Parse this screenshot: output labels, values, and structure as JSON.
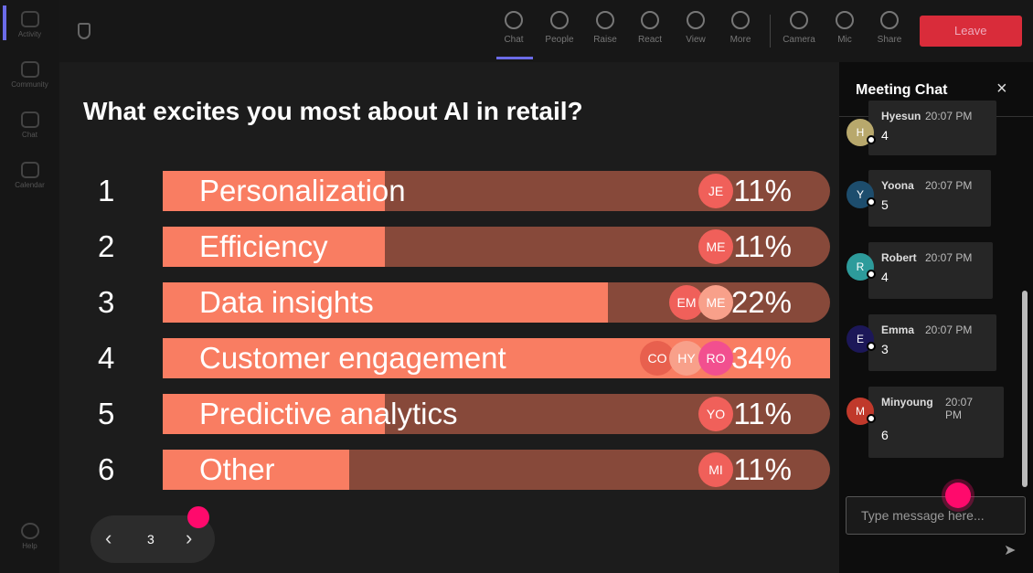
{
  "sidebar": {
    "items": [
      "Activity",
      "Community",
      "Chat",
      "Calendar"
    ],
    "help": "Help"
  },
  "toolbar": {
    "items": [
      "Chat",
      "People",
      "Raise",
      "React",
      "View",
      "More",
      "Camera",
      "Mic",
      "Share"
    ],
    "leave": "Leave"
  },
  "poll": {
    "question": "What excites you most about AI in retail?",
    "options": [
      {
        "number": "1",
        "label": "Personalization",
        "voters": [
          "JE"
        ],
        "percent": "11%"
      },
      {
        "number": "2",
        "label": "Efficiency",
        "voters": [
          "ME"
        ],
        "percent": "11%"
      },
      {
        "number": "3",
        "label": "Data insights",
        "voters": [
          "EM",
          "ME"
        ],
        "percent": "22%"
      },
      {
        "number": "4",
        "label": "Customer engagement",
        "voters": [
          "CO",
          "HY",
          "RO"
        ],
        "percent": "34%"
      },
      {
        "number": "5",
        "label": "Predictive analytics",
        "voters": [
          "YO"
        ],
        "percent": "11%"
      },
      {
        "number": "6",
        "label": "Other",
        "voters": [
          "MI"
        ],
        "percent": "11%"
      }
    ],
    "page": "3"
  },
  "chat": {
    "title": "Meeting Chat",
    "messages": [
      {
        "initial": "H",
        "name": "Hyesun",
        "time": "20:07 PM",
        "text": "4"
      },
      {
        "initial": "Y",
        "name": "Yoona",
        "time": "20:07 PM",
        "text": "5"
      },
      {
        "initial": "R",
        "name": "Robert",
        "time": "20:07 PM",
        "text": "4"
      },
      {
        "initial": "E",
        "name": "Emma",
        "time": "20:07 PM",
        "text": "3"
      },
      {
        "initial": "M",
        "name": "Minyoung",
        "time": "20:07 PM",
        "text": "6"
      }
    ],
    "placeholder": "Type message here..."
  }
}
